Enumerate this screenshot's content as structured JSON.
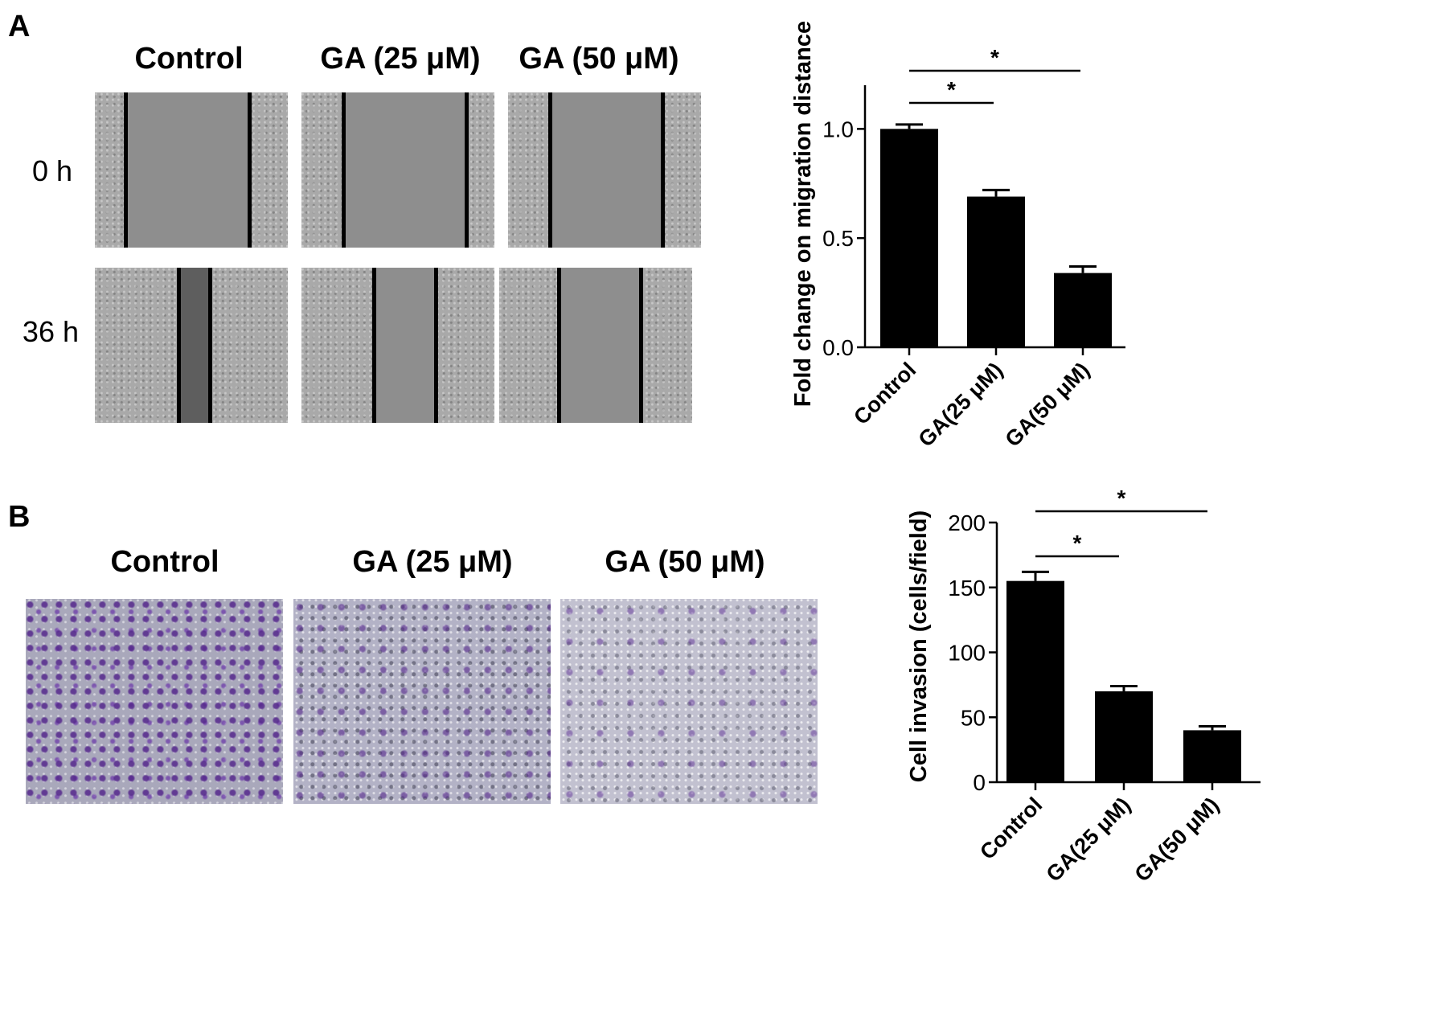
{
  "panels": {
    "a": {
      "letter": "A",
      "col_titles": [
        "Control",
        "GA (25 μM)",
        "GA (50 μM)"
      ],
      "row_labels": [
        "0 h",
        "36 h"
      ]
    },
    "b": {
      "letter": "B",
      "col_titles": [
        "Control",
        "GA (25 μM)",
        "GA (50 μM)"
      ]
    }
  },
  "chart_data": [
    {
      "type": "bar",
      "categories": [
        "Control",
        "GA(25 μM)",
        "GA(50 μM)"
      ],
      "values": [
        1.0,
        0.69,
        0.34
      ],
      "errors": [
        0.02,
        0.03,
        0.03
      ],
      "ylabel": "Fold change on migration distance",
      "ylim": [
        0,
        1.2
      ],
      "yticks": [
        "0.0",
        "0.5",
        "1.0"
      ],
      "ytick_values": [
        0,
        0.5,
        1.0
      ],
      "grid": false,
      "significance": [
        {
          "from": 0,
          "to": 1,
          "label": "*"
        },
        {
          "from": 0,
          "to": 2,
          "label": "*"
        }
      ]
    },
    {
      "type": "bar",
      "categories": [
        "Control",
        "GA(25 μM)",
        "GA(50 μM)"
      ],
      "values": [
        155,
        70,
        40
      ],
      "errors": [
        7,
        4,
        3
      ],
      "ylabel": "Cell invasion (cells/field)",
      "ylim": [
        0,
        200
      ],
      "yticks": [
        "0",
        "50",
        "100",
        "150",
        "200"
      ],
      "ytick_values": [
        0,
        50,
        100,
        150,
        200
      ],
      "grid": false,
      "significance": [
        {
          "from": 0,
          "to": 1,
          "label": "*"
        },
        {
          "from": 0,
          "to": 2,
          "label": "*"
        }
      ]
    }
  ]
}
